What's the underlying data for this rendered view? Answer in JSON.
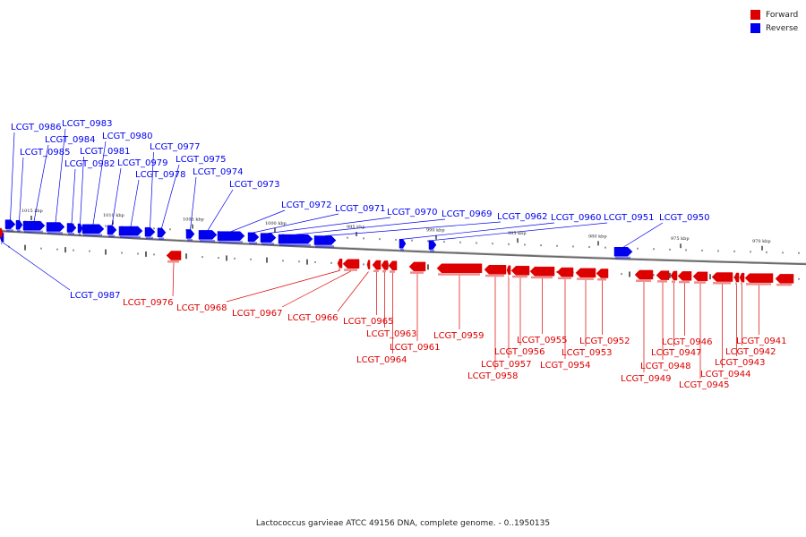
{
  "legend": {
    "forward_label": "Forward",
    "reverse_label": "Reverse",
    "forward_color": "#dd0000",
    "reverse_color": "#0000ee"
  },
  "caption": "Lactococcus garvieae ATCC 49156 DNA, complete genome. - 0..1950135",
  "scale_labels": [
    "1015 kbp",
    "1010 kbp",
    "1005 kbp",
    "1000 kbp",
    "995 kbp",
    "990 kbp",
    "985 kbp",
    "980 kbp",
    "975 kbp",
    "970 kbp"
  ],
  "reverse_genes": [
    "LCGT_0986",
    "LCGT_0983",
    "LCGT_0984",
    "LCGT_0985",
    "LCGT_0981",
    "LCGT_0982",
    "LCGT_0980",
    "LCGT_0979",
    "LCGT_0977",
    "LCGT_0978",
    "LCGT_0975",
    "LCGT_0974",
    "LCGT_0973",
    "LCGT_0972",
    "LCGT_0971",
    "LCGT_0970",
    "LCGT_0969",
    "LCGT_0962",
    "LCGT_0960",
    "LCGT_0951",
    "LCGT_0950",
    "LCGT_0987"
  ],
  "forward_genes": [
    "LCGT_0976",
    "LCGT_0968",
    "LCGT_0967",
    "LCGT_0966",
    "LCGT_0965",
    "LCGT_0963",
    "LCGT_0964",
    "LCGT_0961",
    "LCGT_0959",
    "LCGT_0958",
    "LCGT_0957",
    "LCGT_0956",
    "LCGT_0955",
    "LCGT_0954",
    "LCGT_0953",
    "LCGT_0952",
    "LCGT_0949",
    "LCGT_0948",
    "LCGT_0947",
    "LCGT_0946",
    "LCGT_0945",
    "LCGT_0944",
    "LCGT_0943",
    "LCGT_0942",
    "LCGT_0941"
  ]
}
